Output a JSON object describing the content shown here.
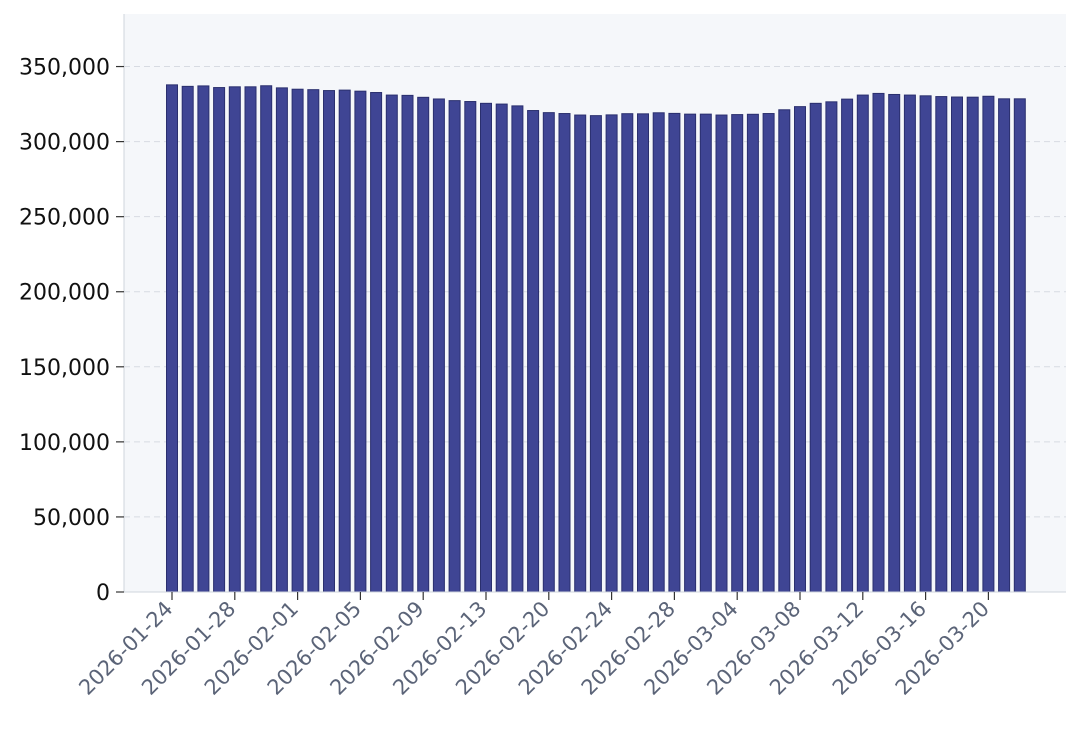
{
  "chart_data": {
    "type": "bar",
    "title": "",
    "xlabel": "",
    "ylabel": "",
    "ylim": [
      0,
      385000
    ],
    "yticks": [
      0,
      50000,
      100000,
      150000,
      200000,
      250000,
      300000,
      350000
    ],
    "ytick_labels": [
      "0",
      "50,000",
      "100,000",
      "150,000",
      "200,000",
      "250,000",
      "300,000",
      "350,000"
    ],
    "grid": "horizontal dashed",
    "legend": "none",
    "colors": {
      "bar": "#3f4594",
      "bar_edge": "#2a2f6e",
      "plot_background": "#f5f7fa",
      "grid": "#d7dbe2",
      "axis": "#cfd4dc",
      "ytick_text": "#111111",
      "xtick_text": "#5b6478"
    },
    "xtick_labels": [
      {
        "index": 0,
        "label": "2026-01-24"
      },
      {
        "index": 4,
        "label": "2026-01-28"
      },
      {
        "index": 8,
        "label": "2026-02-01"
      },
      {
        "index": 12,
        "label": "2026-02-05"
      },
      {
        "index": 16,
        "label": "2026-02-09"
      },
      {
        "index": 20,
        "label": "2026-02-13"
      },
      {
        "index": 24,
        "label": "2026-02-20"
      },
      {
        "index": 28,
        "label": "2026-02-24"
      },
      {
        "index": 32,
        "label": "2026-02-28"
      },
      {
        "index": 36,
        "label": "2026-03-04"
      },
      {
        "index": 40,
        "label": "2026-03-08"
      },
      {
        "index": 44,
        "label": "2026-03-12"
      },
      {
        "index": 48,
        "label": "2026-03-16"
      },
      {
        "index": 52,
        "label": "2026-03-20"
      }
    ],
    "values": [
      337800,
      336800,
      337100,
      336000,
      336500,
      336500,
      337200,
      335800,
      334900,
      334600,
      334000,
      334300,
      333600,
      332700,
      331000,
      330800,
      329500,
      328400,
      327300,
      326700,
      325500,
      325000,
      323800,
      320700,
      319300,
      318700,
      317700,
      317300,
      317800,
      318600,
      318500,
      319200,
      318800,
      318300,
      318300,
      317700,
      318000,
      318200,
      318700,
      321200,
      323300,
      325500,
      326500,
      328300,
      331000,
      332100,
      331400,
      331000,
      330500,
      330000,
      329700,
      329600,
      330200,
      328500,
      328500
    ]
  }
}
